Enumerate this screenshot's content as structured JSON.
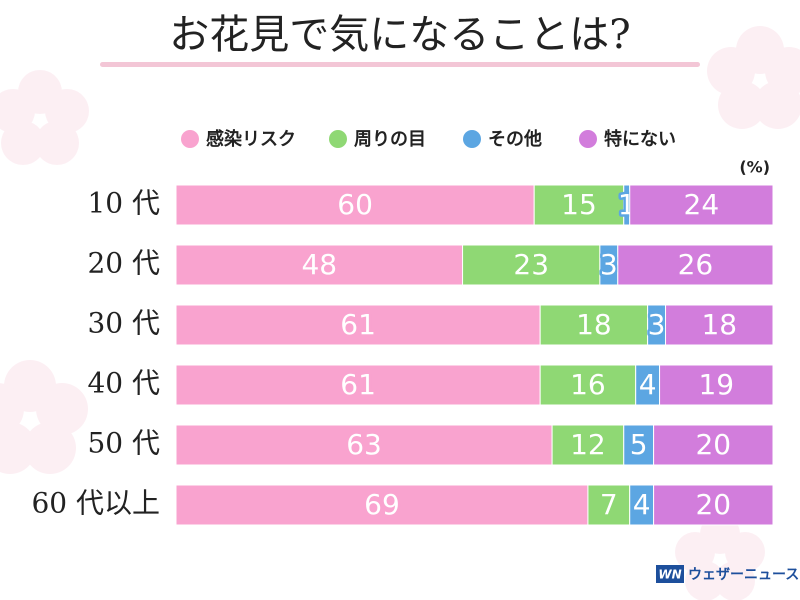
{
  "chart_data": {
    "type": "stacked-bar",
    "title": "お花見で気になることは?",
    "unit": "(%)",
    "logo_mark": "WN",
    "source": "ウェザーニュース",
    "categories": [
      "10 代",
      "20 代",
      "30 代",
      "40 代",
      "50 代",
      "60 代以上"
    ],
    "series": [
      {
        "name": "感染リスク",
        "color": "#f9a3cf",
        "values": [
          60,
          48,
          61,
          61,
          63,
          69
        ]
      },
      {
        "name": "周りの目",
        "color": "#8fd874",
        "values": [
          15,
          23,
          18,
          16,
          12,
          7
        ]
      },
      {
        "name": "その他",
        "color": "#5ca6e2",
        "values": [
          1,
          3,
          3,
          4,
          5,
          4
        ]
      },
      {
        "name": "特にない",
        "color": "#d27ddc",
        "values": [
          24,
          26,
          18,
          19,
          20,
          20
        ]
      }
    ],
    "xlim": [
      0,
      100
    ]
  }
}
